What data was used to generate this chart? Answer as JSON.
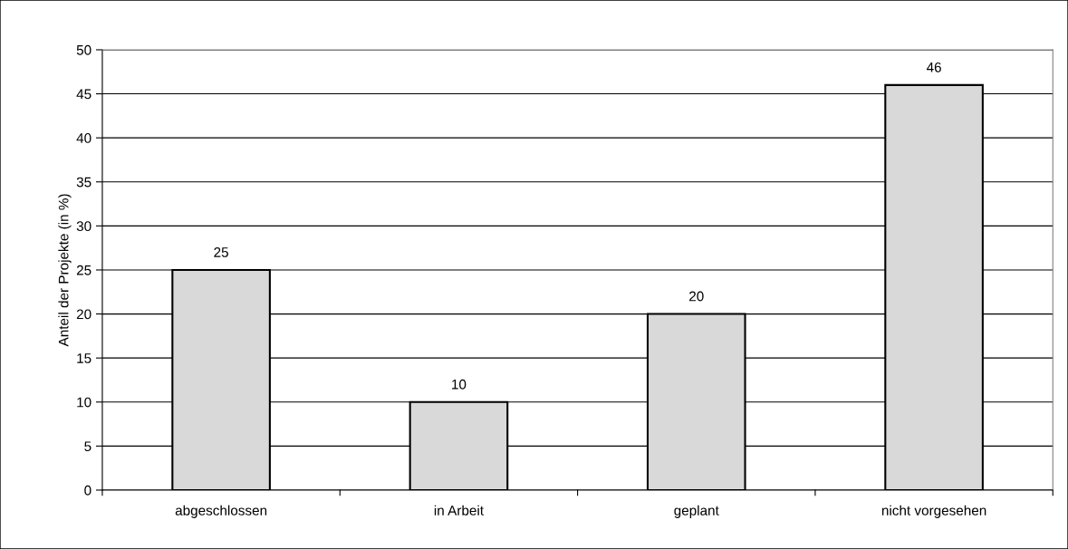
{
  "chart_data": {
    "type": "bar",
    "ylabel": "Anteil der Projekte (in %)",
    "categories": [
      "abgeschlossen",
      "in Arbeit",
      "geplant",
      "nicht vorgesehen"
    ],
    "values": [
      25,
      10,
      20,
      46
    ],
    "color": "#d9d9d9",
    "ylim": [
      0,
      50
    ],
    "yticks": [
      0,
      5,
      10,
      15,
      20,
      25,
      30,
      35,
      40,
      45,
      50
    ],
    "grid": "y",
    "data_labels": true,
    "legend": false
  }
}
